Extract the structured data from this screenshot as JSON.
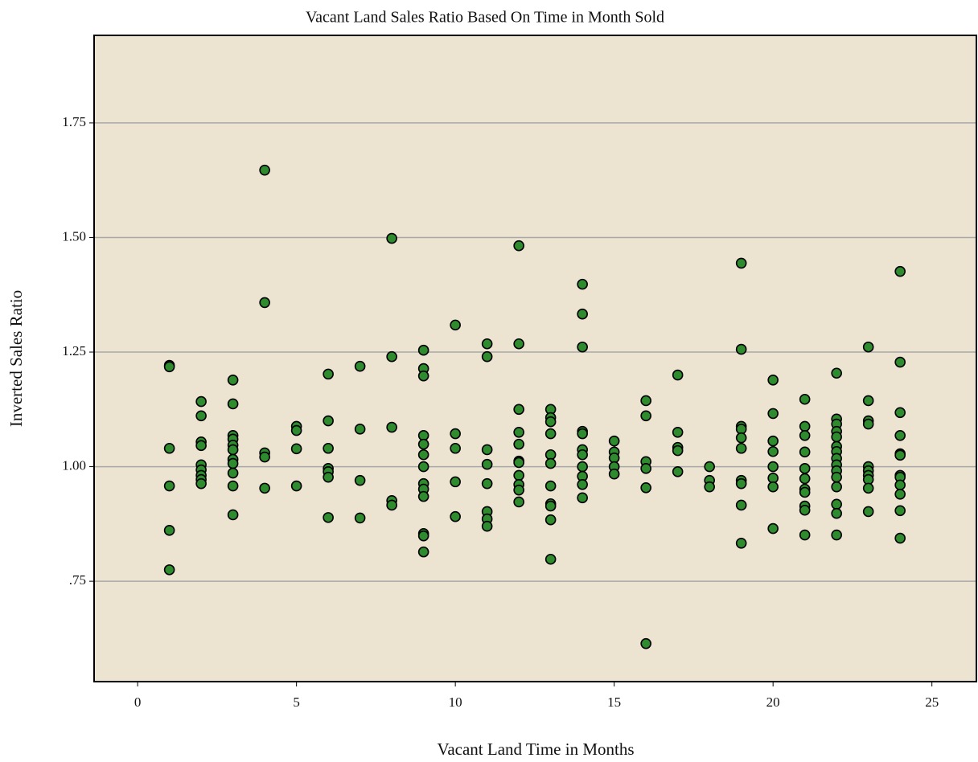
{
  "chart_data": {
    "type": "scatter",
    "title": "Vacant Land Sales Ratio Based On Time in Month Sold",
    "x_label": "Vacant Land Time in Months",
    "y_label": "Inverted Sales Ratio",
    "color": "#2e8b2e",
    "grid": true,
    "xlim": [
      -1.37,
      26.4
    ],
    "ylim": [
      0.531,
      1.941
    ],
    "xticks": [
      0,
      5,
      10,
      15,
      20,
      25
    ],
    "yticks": [
      {
        "value": 0.75,
        "label": ".75"
      },
      {
        "value": 1.0,
        "label": "1.00"
      },
      1.25,
      {
        "value": 1.5,
        "label": "1.50"
      },
      1.75
    ],
    "x": [
      1,
      1,
      1,
      1,
      1,
      1,
      2,
      2,
      2,
      2,
      2,
      2,
      2,
      2,
      2,
      3,
      3,
      3,
      3,
      3,
      3,
      3,
      3,
      3,
      3,
      3,
      4,
      4,
      4,
      4,
      4,
      5,
      5,
      5,
      5,
      6,
      6,
      6,
      6,
      6,
      6,
      6,
      7,
      7,
      7,
      7,
      8,
      8,
      8,
      8,
      8,
      9,
      9,
      9,
      9,
      9,
      9,
      9,
      9,
      9,
      9,
      9,
      9,
      9,
      10,
      10,
      10,
      10,
      10,
      11,
      11,
      11,
      11,
      11,
      11,
      11,
      11,
      12,
      12,
      12,
      12,
      12,
      12,
      12,
      12,
      12,
      12,
      12,
      13,
      13,
      13,
      13,
      13,
      13,
      13,
      13,
      13,
      13,
      13,
      14,
      14,
      14,
      14,
      14,
      14,
      14,
      14,
      14,
      14,
      14,
      15,
      15,
      15,
      15,
      15,
      16,
      16,
      16,
      16,
      16,
      16,
      17,
      17,
      17,
      17,
      17,
      18,
      18,
      18,
      19,
      19,
      19,
      19,
      19,
      19,
      19,
      19,
      19,
      19,
      20,
      20,
      20,
      20,
      20,
      20,
      20,
      20,
      21,
      21,
      21,
      21,
      21,
      21,
      21,
      21,
      21,
      21,
      21,
      22,
      22,
      22,
      22,
      22,
      22,
      22,
      22,
      22,
      22,
      22,
      22,
      22,
      22,
      22,
      23,
      23,
      23,
      23,
      23,
      23,
      23,
      23,
      23,
      23,
      24,
      24,
      24,
      24,
      24,
      24,
      24,
      24,
      24,
      24,
      24,
      24
    ],
    "values": [
      1.221,
      1.218,
      1.04,
      0.958,
      0.861,
      0.775,
      1.142,
      1.111,
      1.054,
      1.046,
      1.004,
      0.993,
      0.981,
      0.972,
      0.963,
      1.189,
      1.137,
      1.068,
      1.06,
      1.047,
      1.037,
      1.016,
      1.007,
      0.986,
      0.958,
      0.895,
      1.647,
      1.358,
      1.03,
      1.021,
      0.953,
      1.088,
      1.079,
      1.039,
      0.958,
      1.202,
      1.1,
      1.04,
      0.996,
      0.989,
      0.977,
      0.889,
      1.219,
      1.082,
      0.97,
      0.888,
      1.498,
      1.24,
      1.086,
      0.926,
      0.916,
      1.254,
      1.214,
      1.198,
      1.068,
      1.049,
      1.026,
      1.0,
      0.963,
      0.951,
      0.935,
      0.854,
      0.849,
      0.814,
      1.309,
      1.072,
      1.04,
      0.967,
      0.891,
      1.268,
      1.24,
      1.037,
      1.005,
      0.963,
      0.902,
      0.886,
      0.87,
      1.482,
      1.268,
      1.125,
      1.075,
      1.049,
      1.012,
      1.009,
      0.981,
      0.961,
      0.949,
      0.923,
      1.125,
      1.107,
      1.098,
      1.072,
      1.026,
      1.007,
      0.958,
      0.919,
      0.914,
      0.884,
      0.798,
      1.398,
      1.333,
      1.261,
      1.077,
      1.072,
      1.037,
      1.026,
      1.0,
      0.979,
      0.961,
      0.932,
      1.056,
      1.032,
      1.019,
      1.0,
      0.984,
      1.144,
      1.111,
      1.011,
      0.996,
      0.954,
      0.614,
      1.2,
      1.075,
      1.042,
      1.035,
      0.989,
      1.0,
      0.97,
      0.956,
      1.444,
      1.256,
      1.088,
      1.082,
      1.063,
      1.04,
      0.97,
      0.963,
      0.916,
      0.833,
      1.189,
      1.116,
      1.056,
      1.033,
      1.0,
      0.975,
      0.956,
      0.865,
      1.147,
      1.088,
      1.068,
      1.032,
      0.996,
      0.974,
      0.951,
      0.944,
      0.914,
      0.905,
      0.851,
      1.204,
      1.104,
      1.093,
      1.077,
      1.065,
      1.044,
      1.033,
      1.018,
      1.004,
      0.991,
      0.977,
      0.956,
      0.918,
      0.898,
      0.851,
      1.261,
      1.144,
      1.1,
      1.093,
      1.0,
      0.991,
      0.981,
      0.972,
      0.953,
      0.902,
      1.426,
      1.228,
      1.118,
      1.068,
      1.028,
      1.025,
      0.981,
      0.977,
      0.96,
      0.94,
      0.904,
      0.844
    ]
  }
}
